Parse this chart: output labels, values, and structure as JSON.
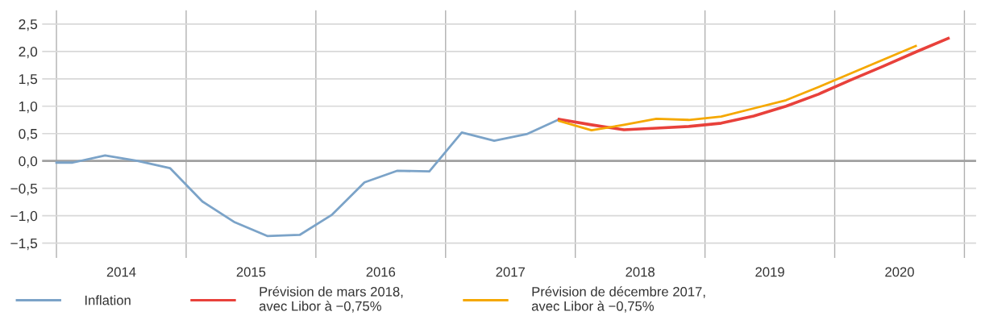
{
  "chart_data": {
    "type": "line",
    "xlim": [
      2013.89,
      2021.09
    ],
    "ylim": [
      -1.77,
      2.75
    ],
    "xticks": [
      {
        "value": 2014,
        "label": null
      },
      {
        "value": 2014.5,
        "label": "2014"
      },
      {
        "value": 2015,
        "label": null
      },
      {
        "value": 2015.5,
        "label": "2015"
      },
      {
        "value": 2016,
        "label": null
      },
      {
        "value": 2016.5,
        "label": "2016"
      },
      {
        "value": 2017,
        "label": null
      },
      {
        "value": 2017.5,
        "label": "2017"
      },
      {
        "value": 2018,
        "label": null
      },
      {
        "value": 2018.5,
        "label": "2018"
      },
      {
        "value": 2019,
        "label": null
      },
      {
        "value": 2019.5,
        "label": "2019"
      },
      {
        "value": 2020,
        "label": null
      },
      {
        "value": 2020.5,
        "label": "2020"
      },
      {
        "value": 2021,
        "label": null
      }
    ],
    "yticks": [
      {
        "value": -1.5,
        "label": "−1,5"
      },
      {
        "value": -1.0,
        "label": "−1,0"
      },
      {
        "value": -0.5,
        "label": "−0,5"
      },
      {
        "value": 0,
        "label": "0,0"
      },
      {
        "value": 0.5,
        "label": "0,5"
      },
      {
        "value": 1.0,
        "label": "1,0"
      },
      {
        "value": 1.5,
        "label": "1,5"
      },
      {
        "value": 2.0,
        "label": "2,0"
      },
      {
        "value": 2.5,
        "label": "2,5"
      }
    ],
    "grid": true,
    "legend": "bottom",
    "marker": "none",
    "line_style": "solid",
    "ref_lines": [
      {
        "axis": "y",
        "value": 0,
        "color": "#a0a0a0"
      }
    ],
    "series": [
      {
        "name": "Inflation",
        "color": "#7ba3c8",
        "x": [
          2014.0,
          2014.125,
          2014.375,
          2014.625,
          2014.875,
          2015.125,
          2015.375,
          2015.625,
          2015.875,
          2016.125,
          2016.375,
          2016.625,
          2016.875,
          2017.125,
          2017.375,
          2017.625,
          2017.875
        ],
        "values": [
          -0.03,
          -0.03,
          0.1,
          0.0,
          -0.13,
          -0.74,
          -1.12,
          -1.37,
          -1.35,
          -0.98,
          -0.39,
          -0.18,
          -0.19,
          0.52,
          0.37,
          0.49,
          0.76
        ]
      },
      {
        "name": "Prévision de mars 2018,\navec Libor à −0,75%",
        "color": "#e8413b",
        "x": [
          2017.875,
          2018.125,
          2018.375,
          2018.625,
          2018.875,
          2019.125,
          2019.375,
          2019.625,
          2019.875,
          2020.125,
          2020.375,
          2020.625,
          2020.875
        ],
        "values": [
          0.76,
          0.66,
          0.57,
          0.6,
          0.63,
          0.69,
          0.82,
          1.0,
          1.22,
          1.48,
          1.73,
          1.99,
          2.24
        ]
      },
      {
        "name": "Prévision de décembre 2017,\navec Libor à −0,75%",
        "color": "#f5a800",
        "x": [
          2017.875,
          2018.125,
          2018.375,
          2018.625,
          2018.875,
          2019.125,
          2019.375,
          2019.625,
          2019.875,
          2020.125,
          2020.375,
          2020.625
        ],
        "values": [
          0.73,
          0.56,
          0.66,
          0.77,
          0.75,
          0.81,
          0.96,
          1.11,
          1.35,
          1.6,
          1.85,
          2.1
        ]
      }
    ]
  }
}
